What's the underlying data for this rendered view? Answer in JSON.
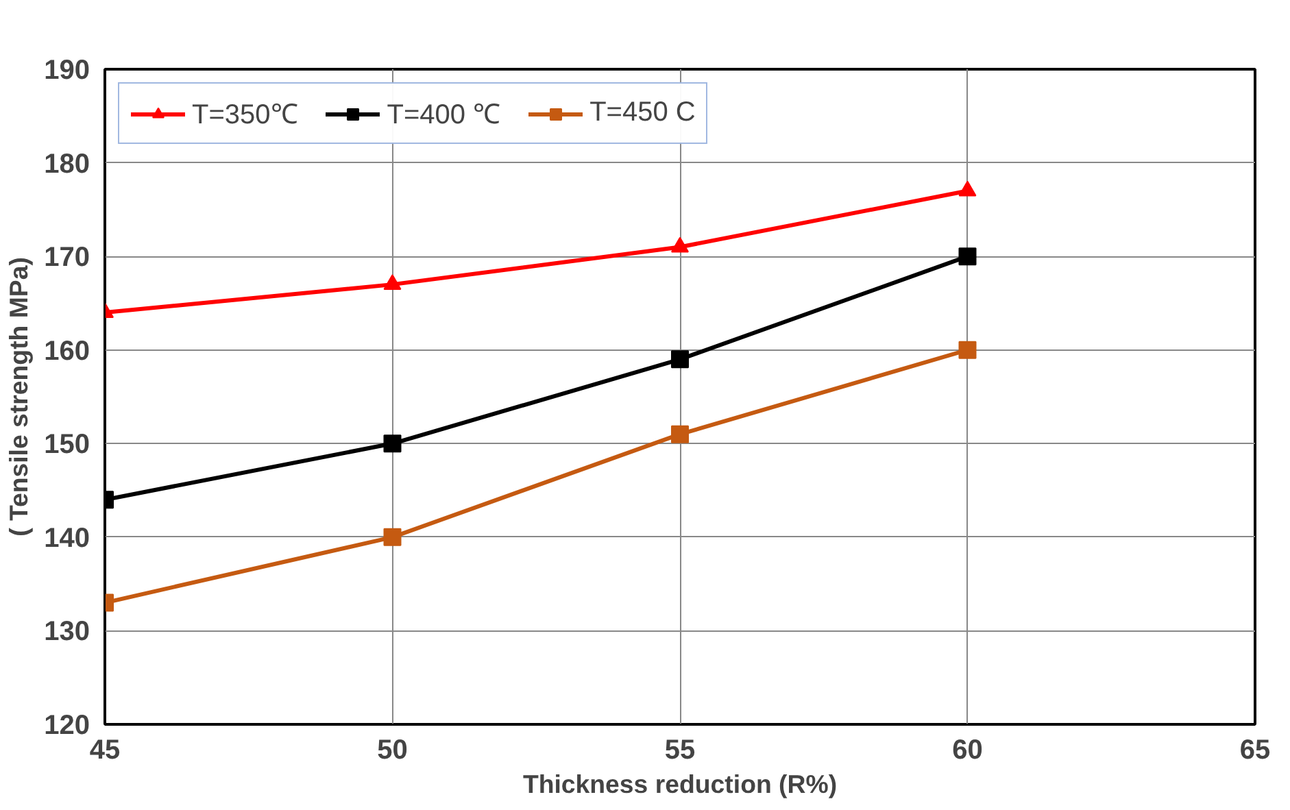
{
  "chart_data": {
    "type": "line",
    "xlabel": "Thickness reduction (R%)",
    "ylabel": "( Tensile strength MPa)",
    "x": [
      45,
      50,
      55,
      60
    ],
    "series": [
      {
        "name": "T=350℃",
        "color": "#ff0000",
        "marker": "triangle",
        "values": [
          164,
          167,
          171,
          177
        ]
      },
      {
        "name": "T=400 ℃",
        "color": "#000000",
        "marker": "square",
        "values": [
          144,
          150,
          159,
          170
        ]
      },
      {
        "name": "T=450 C",
        "color": "#c55a11",
        "marker": "square",
        "values": [
          133,
          140,
          151,
          160
        ]
      }
    ],
    "xlim": [
      45,
      65
    ],
    "xticks": [
      45,
      50,
      55,
      60,
      65
    ],
    "ylim": [
      120,
      190
    ],
    "yticks": [
      120,
      130,
      140,
      150,
      160,
      170,
      180,
      190
    ],
    "grid": true,
    "legend": "top left",
    "line_style": "solid"
  }
}
